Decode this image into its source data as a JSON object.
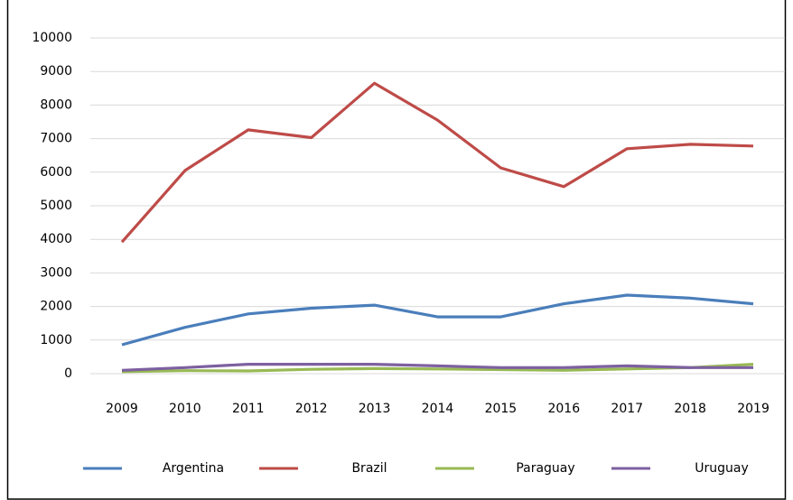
{
  "chart_data": {
    "type": "line",
    "categories": [
      "2009",
      "2010",
      "2011",
      "2012",
      "2013",
      "2014",
      "2015",
      "2016",
      "2017",
      "2018",
      "2019"
    ],
    "series": [
      {
        "name": "Argentina",
        "color": "#4a7ebb",
        "values": [
          860,
          1380,
          1780,
          1950,
          2040,
          1690,
          1690,
          2080,
          2340,
          2250,
          2080
        ]
      },
      {
        "name": "Brazil",
        "color": "#be4b48",
        "values": [
          3920,
          6050,
          7260,
          7030,
          8650,
          7550,
          6130,
          5570,
          6700,
          6830,
          6780
        ]
      },
      {
        "name": "Paraguay",
        "color": "#98b954",
        "values": [
          60,
          90,
          80,
          130,
          150,
          140,
          120,
          100,
          140,
          180,
          280
        ]
      },
      {
        "name": "Uruguay",
        "color": "#7d60a0",
        "values": [
          100,
          180,
          280,
          280,
          280,
          230,
          180,
          180,
          230,
          180,
          180
        ]
      }
    ],
    "ylim": [
      0,
      10000
    ],
    "yticks": [
      0,
      1000,
      2000,
      3000,
      4000,
      5000,
      6000,
      7000,
      8000,
      9000,
      10000
    ],
    "grid": true,
    "legend": "bottom"
  }
}
